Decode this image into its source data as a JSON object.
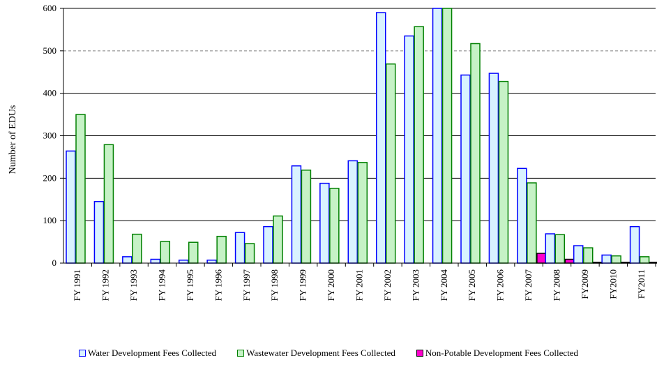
{
  "chart_data": {
    "type": "bar",
    "title": "",
    "xlabel": "",
    "ylabel": "Number of EDUs",
    "ylim": [
      0,
      600
    ],
    "yticks": [
      0,
      100,
      200,
      300,
      400,
      500,
      600
    ],
    "grid": true,
    "legend_position": "bottom",
    "categories": [
      "FY 1991",
      "FY 1992",
      "FY 1993",
      "FY 1994",
      "FY 1995",
      "FY 1996",
      "FY 1997",
      "FY 1998",
      "FY 1999",
      "FY 2000",
      "FY 2001",
      "FY 2002",
      "FY 2003",
      "FY 2004",
      "FY 2005",
      "FY 2006",
      "FY 2007",
      "FY 2008",
      "FY2009",
      "FY2010",
      "FY2011"
    ],
    "series": [
      {
        "name": "Water Development Fees Collected",
        "fill": "#d9f2ff",
        "stroke": "#0000ff",
        "values": [
          264,
          145,
          15,
          9,
          7,
          7,
          72,
          86,
          229,
          188,
          241,
          590,
          535,
          610,
          443,
          447,
          223,
          69,
          41,
          19,
          86
        ]
      },
      {
        "name": "Wastewater Development Fees Collected",
        "fill": "#c6f2c6",
        "stroke": "#008000",
        "values": [
          350,
          279,
          68,
          51,
          49,
          63,
          46,
          111,
          219,
          176,
          237,
          469,
          557,
          610,
          517,
          428,
          189,
          67,
          36,
          17,
          15
        ]
      },
      {
        "name": "Non-Potable Development Fees Collected",
        "fill": "#ff00cc",
        "stroke": "#000000",
        "values": [
          0,
          0,
          0,
          0,
          0,
          0,
          0,
          0,
          0,
          0,
          0,
          0,
          0,
          0,
          0,
          0,
          23,
          9,
          2,
          2,
          2
        ]
      }
    ]
  }
}
